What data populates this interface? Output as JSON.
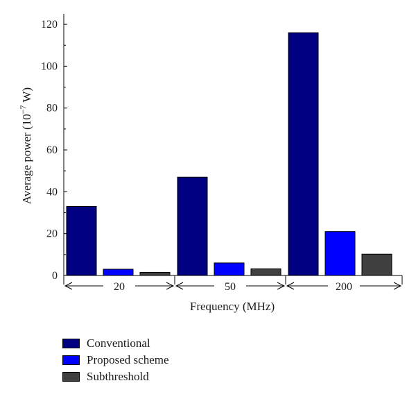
{
  "chart_data": {
    "type": "bar",
    "categories": [
      "20",
      "50",
      "200"
    ],
    "series": [
      {
        "name": "Conventional",
        "values": [
          33,
          47,
          116
        ],
        "color": "#000080"
      },
      {
        "name": "Proposed scheme",
        "values": [
          3,
          6,
          21
        ],
        "color": "#0000ff"
      },
      {
        "name": "Subthreshold",
        "values": [
          1.5,
          3.2,
          10.2
        ],
        "color": "#404040"
      }
    ],
    "xlabel": "Frequency (MHz)",
    "ylabel_main": "Average power (10",
    "ylabel_exp": "−7",
    "ylabel_unit": " W)",
    "ylim": [
      0,
      125
    ],
    "yticks": [
      0,
      20,
      40,
      60,
      80,
      100,
      120
    ],
    "grid": false,
    "legend_position": "bottom-left"
  }
}
